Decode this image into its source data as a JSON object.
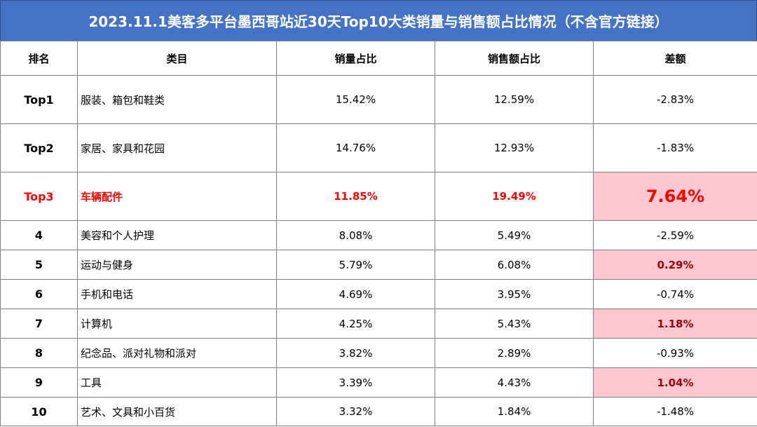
{
  "title": "2023.11.1美客多平台墨西哥站近30天Top10大类销量与销售额占比情况（不含官方链接）",
  "headers": [
    "排名",
    "类目",
    "销量占比",
    "销售额占比",
    "差额"
  ],
  "rows": [
    {
      "rank": "Top1",
      "category": "服装、箱包和鞋类",
      "sales_share": "15.42%",
      "revenue_share": "12.59%",
      "diff": "-2.83%"
    },
    {
      "rank": "Top2",
      "category": "家居、家具和花园",
      "sales_share": "14.76%",
      "revenue_share": "12.93%",
      "diff": "-1.83%"
    },
    {
      "rank": "Top3",
      "category": "车辆配件",
      "sales_share": "11.85%",
      "revenue_share": "19.49%",
      "diff": "7.64%"
    },
    {
      "rank": "4",
      "category": "美容和个人护理",
      "sales_share": "8.08%",
      "revenue_share": "5.49%",
      "diff": "-2.59%"
    },
    {
      "rank": "5",
      "category": "运动与健身",
      "sales_share": "5.79%",
      "revenue_share": "6.08%",
      "diff": "0.29%"
    },
    {
      "rank": "6",
      "category": "手机和电话",
      "sales_share": "4.69%",
      "revenue_share": "3.95%",
      "diff": "-0.74%"
    },
    {
      "rank": "7",
      "category": "计算机",
      "sales_share": "4.25%",
      "revenue_share": "5.43%",
      "diff": "1.18%"
    },
    {
      "rank": "8",
      "category": "纪念品、派对礼物和派对",
      "sales_share": "3.82%",
      "revenue_share": "2.89%",
      "diff": "-0.93%"
    },
    {
      "rank": "9",
      "category": "工具",
      "sales_share": "3.39%",
      "revenue_share": "4.43%",
      "diff": "1.04%"
    },
    {
      "rank": "10",
      "category": "艺术、文具和小百货",
      "sales_share": "3.32%",
      "revenue_share": "1.84%",
      "diff": "-1.48%"
    }
  ],
  "colors": {
    "header_bg": "#4472c4",
    "highlight_text": "#ff0000",
    "positive_bg": "#ffc7ce",
    "positive_text": "#9c0006"
  }
}
